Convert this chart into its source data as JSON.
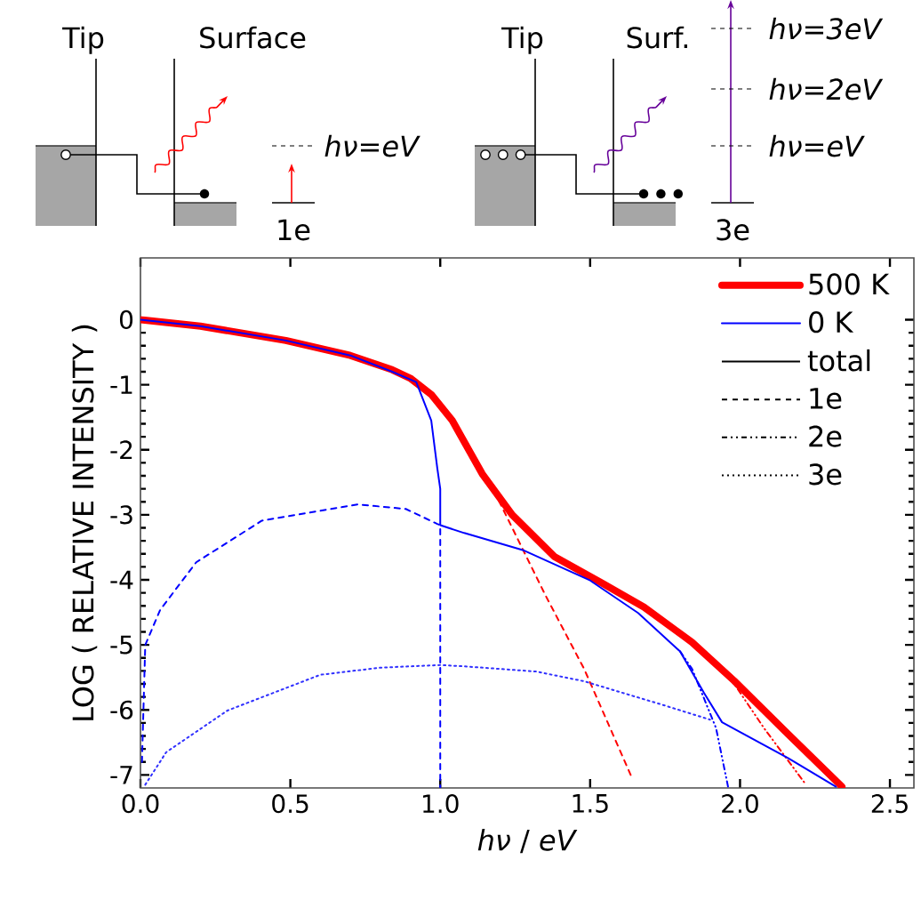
{
  "chart_data": {
    "type": "line",
    "xlabel": "*hν* / *eV*",
    "ylabel": "LOG ( RELATIVE INTENSITY )",
    "xlim": [
      0,
      2.58
    ],
    "ylim": [
      -7.2,
      0.95
    ],
    "xticks": [
      {
        "value": 0,
        "label": "0.0"
      },
      {
        "value": 0.5,
        "label": "0.5"
      },
      {
        "value": 1,
        "label": "1.0"
      },
      {
        "value": 1.5,
        "label": "1.5"
      },
      {
        "value": 2,
        "label": "2.0"
      },
      {
        "value": 2.5,
        "label": "2.5"
      }
    ],
    "yticks": [
      0,
      -1,
      -2,
      -3,
      -4,
      -5,
      -6,
      -7
    ],
    "legend": "top right",
    "series": [
      {
        "color": "#0000ff",
        "line_style": "dashed",
        "x": [
          0.005,
          0.016,
          0.066,
          0.186,
          0.405,
          0.725,
          0.885,
          0.99,
          1.0,
          1.0
        ],
        "values": [
          -6.8,
          -5.0,
          -4.46,
          -3.73,
          -3.09,
          -2.84,
          -2.91,
          -3.14,
          -3.16,
          -7.2
        ]
      },
      {
        "color": "#ff0000",
        "line_style": "dashed",
        "x": [
          1.18,
          1.24,
          1.35,
          1.48,
          1.64
        ],
        "values": [
          -2.64,
          -3.2,
          -4.23,
          -5.37,
          -7.05
        ]
      },
      {
        "color": "#0000ff",
        "line_style": "dashdot",
        "x": [
          1.8,
          1.84,
          1.92,
          1.96
        ],
        "values": [
          -5.1,
          -5.37,
          -6.28,
          -7.18
        ]
      },
      {
        "color": "#ff0000",
        "line_style": "dashdot",
        "x": [
          1.96,
          2.08,
          2.22
        ],
        "values": [
          -5.46,
          -6.28,
          -7.15
        ]
      },
      {
        "color": "#3030ff",
        "line_style": "dotted",
        "x": [
          0.016,
          0.086,
          0.29,
          0.6,
          0.8,
          1.0,
          1.08,
          1.32,
          1.48,
          1.74,
          1.9
        ],
        "values": [
          -7.15,
          -6.65,
          -6.01,
          -5.46,
          -5.35,
          -5.31,
          -5.33,
          -5.41,
          -5.56,
          -5.92,
          -6.15
        ]
      },
      {
        "name": "500 K",
        "color": "#ff0000",
        "line_style": "solid",
        "x": [
          0,
          0.2,
          0.485,
          0.7,
          0.84,
          0.9,
          0.97,
          1.04,
          1.14,
          1.24,
          1.38,
          1.54,
          1.68,
          1.84,
          1.98,
          2.16,
          2.34
        ],
        "values": [
          0,
          -0.1,
          -0.32,
          -0.55,
          -0.77,
          -0.9,
          -1.15,
          -1.55,
          -2.37,
          -3.0,
          -3.64,
          -4.05,
          -4.42,
          -4.96,
          -5.55,
          -6.37,
          -7.18
        ]
      },
      {
        "name": "0 K",
        "color": "#0000ff",
        "line_style": "solid",
        "x": [
          0,
          0.2,
          0.485,
          0.7,
          0.84,
          0.92,
          0.97,
          0.99,
          1.0,
          1.0,
          1.08,
          1.28,
          1.5,
          1.66,
          1.8,
          1.88,
          1.94,
          2.0,
          2.16,
          2.32
        ],
        "values": [
          0,
          -0.1,
          -0.32,
          -0.55,
          -0.8,
          -0.96,
          -1.55,
          -2.28,
          -2.6,
          -3.16,
          -3.28,
          -3.55,
          -4.01,
          -4.51,
          -5.1,
          -5.74,
          -6.19,
          -6.34,
          -6.74,
          -7.18
        ]
      }
    ],
    "annotations": [
      "total",
      "1e",
      "2e",
      "3e",
      "Tip",
      "Surface",
      "hν=eV",
      "1e",
      "Tip",
      "Surf.",
      "hν=3eV",
      "hν=2eV",
      "hν=eV",
      "3e"
    ]
  }
}
